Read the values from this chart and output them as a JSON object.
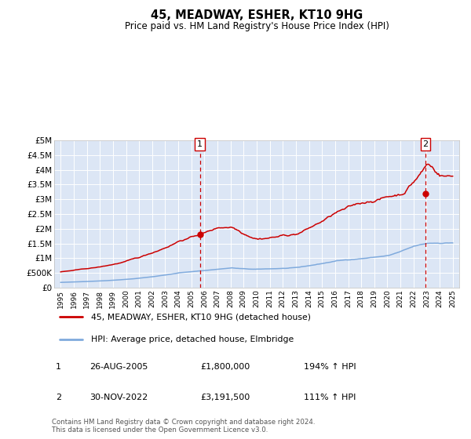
{
  "title": "45, MEADWAY, ESHER, KT10 9HG",
  "subtitle": "Price paid vs. HM Land Registry's House Price Index (HPI)",
  "red_line_label": "45, MEADWAY, ESHER, KT10 9HG (detached house)",
  "blue_line_label": "HPI: Average price, detached house, Elmbridge",
  "transaction1_label": "1",
  "transaction1_date": "26-AUG-2005",
  "transaction1_price": "£1,800,000",
  "transaction1_hpi": "194% ↑ HPI",
  "transaction2_label": "2",
  "transaction2_date": "30-NOV-2022",
  "transaction2_price": "£3,191,500",
  "transaction2_hpi": "111% ↑ HPI",
  "footer": "Contains HM Land Registry data © Crown copyright and database right 2024.\nThis data is licensed under the Open Government Licence v3.0.",
  "background_color": "#ffffff",
  "plot_bg_color": "#dce6f5",
  "grid_color": "#ffffff",
  "red_color": "#cc0000",
  "blue_color": "#7faadd",
  "dashed_line_color": "#cc0000",
  "marker1_x": 2005.65,
  "marker1_y": 1800000,
  "marker2_x": 2022.92,
  "marker2_y": 3191500,
  "ylim": [
    0,
    5000000
  ],
  "xlim": [
    1994.5,
    2025.5
  ],
  "yticks": [
    0,
    500000,
    1000000,
    1500000,
    2000000,
    2500000,
    3000000,
    3500000,
    4000000,
    4500000,
    5000000
  ],
  "ytick_labels": [
    "£0",
    "£500K",
    "£1M",
    "£1.5M",
    "£2M",
    "£2.5M",
    "£3M",
    "£3.5M",
    "£4M",
    "£4.5M",
    "£5M"
  ],
  "xticks": [
    1995,
    1996,
    1997,
    1998,
    1999,
    2000,
    2001,
    2002,
    2003,
    2004,
    2005,
    2006,
    2007,
    2008,
    2009,
    2010,
    2011,
    2012,
    2013,
    2014,
    2015,
    2016,
    2017,
    2018,
    2019,
    2020,
    2021,
    2022,
    2023,
    2024,
    2025
  ]
}
